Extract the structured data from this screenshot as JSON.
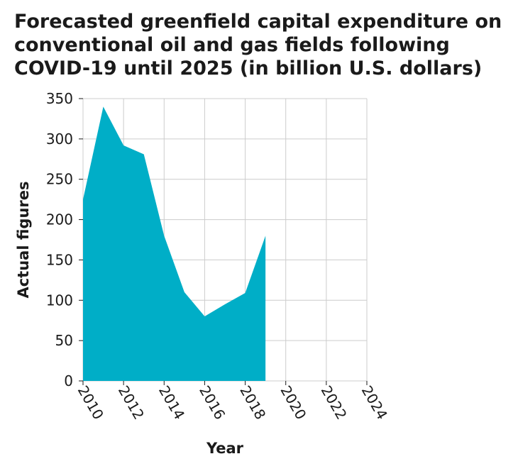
{
  "chart_data": {
    "type": "area",
    "title": "Forecasted greenfield capital expenditure on conventional oil and gas fields following COVID-19 until 2025 (in billion U.S. dollars)",
    "xlabel": "Year",
    "ylabel": "Actual figures",
    "xlim": [
      2010,
      2024
    ],
    "ylim": [
      0,
      350
    ],
    "x_ticks": [
      2010,
      2012,
      2014,
      2016,
      2018,
      2020,
      2022,
      2024
    ],
    "y_ticks": [
      0,
      50,
      100,
      150,
      200,
      250,
      300,
      350
    ],
    "grid": true,
    "series": [
      {
        "color": "#00aec7",
        "x": [
          2010,
          2011,
          2012,
          2013,
          2014,
          2015,
          2016,
          2017,
          2018,
          2019
        ],
        "values": [
          225,
          340,
          292,
          281,
          180,
          110,
          80,
          95,
          109,
          180
        ]
      }
    ]
  }
}
